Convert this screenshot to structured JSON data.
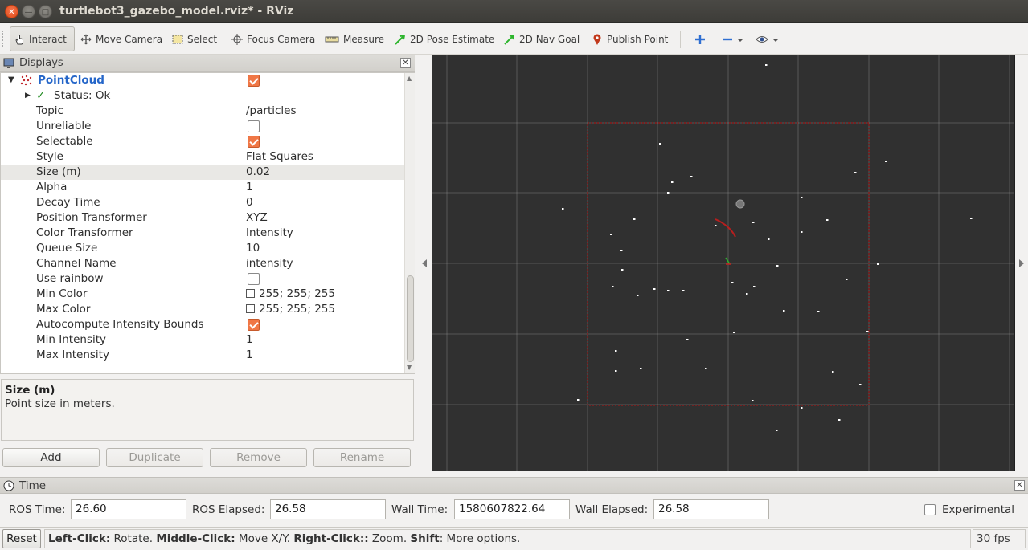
{
  "window": {
    "title": "turtlebot3_gazebo_model.rviz* - RViz"
  },
  "toolbar": {
    "tools": [
      {
        "label": "Interact",
        "icon": "hand-cursor-icon",
        "active": true
      },
      {
        "label": "Move Camera",
        "icon": "move-camera-icon"
      },
      {
        "label": "Select",
        "icon": "select-box-icon"
      },
      {
        "label": "Focus Camera",
        "icon": "crosshair-icon"
      },
      {
        "label": "Measure",
        "icon": "ruler-icon"
      },
      {
        "label": "2D Pose Estimate",
        "icon": "green-arrow-icon"
      },
      {
        "label": "2D Nav Goal",
        "icon": "green-arrow-icon"
      },
      {
        "label": "Publish Point",
        "icon": "map-pin-icon"
      }
    ],
    "extra_icons": [
      "plus-icon",
      "minus-icon",
      "eye-icon"
    ],
    "colors": {
      "pose_arrow": "#2db52d",
      "publish_pin": "#c2391b",
      "plus": "#2f6fd1"
    }
  },
  "displays": {
    "title": "Displays",
    "display_name": "PointCloud",
    "status_label": "Status: Ok",
    "properties": [
      {
        "name": "Topic",
        "value": "/particles"
      },
      {
        "name": "Unreliable",
        "checkbox": false
      },
      {
        "name": "Selectable",
        "checkbox": true
      },
      {
        "name": "Style",
        "value": "Flat Squares"
      },
      {
        "name": "Size (m)",
        "value": "0.02",
        "selected": true
      },
      {
        "name": "Alpha",
        "value": "1"
      },
      {
        "name": "Decay Time",
        "value": "0"
      },
      {
        "name": "Position Transformer",
        "value": "XYZ"
      },
      {
        "name": "Color Transformer",
        "value": "Intensity"
      },
      {
        "name": "Queue Size",
        "value": "10"
      },
      {
        "name": "Channel Name",
        "value": "intensity"
      },
      {
        "name": "Use rainbow",
        "checkbox": false
      },
      {
        "name": "Min Color",
        "value": "255; 255; 255",
        "swatch": "#ffffff"
      },
      {
        "name": "Max Color",
        "value": "255; 255; 255",
        "swatch": "#ffffff"
      },
      {
        "name": "Autocompute Intensity Bounds",
        "checkbox": true
      },
      {
        "name": "Min Intensity",
        "value": "1"
      },
      {
        "name": "Max Intensity",
        "value": "1"
      }
    ],
    "description_title": "Size (m)",
    "description_text": "Point size in meters.",
    "buttons": {
      "add": "Add",
      "duplicate": "Duplicate",
      "remove": "Remove",
      "rename": "Rename"
    }
  },
  "viewport": {
    "background": "#303030",
    "grid_color": "#a0a0a0",
    "map_border_color": "#8a1c1c",
    "particle_color": "#ffffff"
  },
  "time": {
    "title": "Time",
    "ros_time_label": "ROS Time:",
    "ros_time": "26.60",
    "ros_elapsed_label": "ROS Elapsed:",
    "ros_elapsed": "26.58",
    "wall_time_label": "Wall Time:",
    "wall_time": "1580607822.64",
    "wall_elapsed_label": "Wall Elapsed:",
    "wall_elapsed": "26.58",
    "experimental_label": "Experimental"
  },
  "statusbar": {
    "reset": "Reset",
    "hint": [
      {
        "b": "Left-Click:",
        "t": " Rotate. "
      },
      {
        "b": "Middle-Click:",
        "t": " Move X/Y. "
      },
      {
        "b": "Right-Click::",
        "t": " Zoom. "
      },
      {
        "b": "Shift",
        "t": ": More options."
      }
    ],
    "fps": "30 fps"
  }
}
